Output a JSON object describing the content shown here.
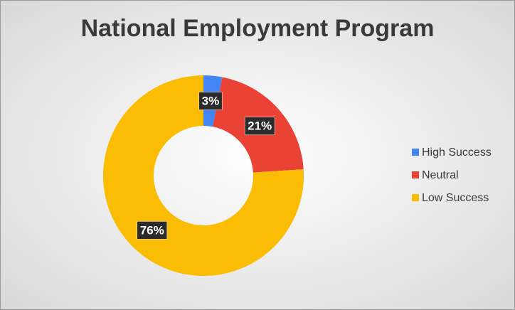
{
  "chart_data": {
    "type": "doughnut",
    "title": "National Employment Program",
    "categories": [
      "High Success",
      "Neutral",
      "Low Success"
    ],
    "values": [
      3,
      21,
      76
    ],
    "value_labels": [
      "3%",
      "21%",
      "76%"
    ],
    "colors": [
      "#4285f4",
      "#ea4335",
      "#fbbc04"
    ],
    "legend": "right"
  }
}
